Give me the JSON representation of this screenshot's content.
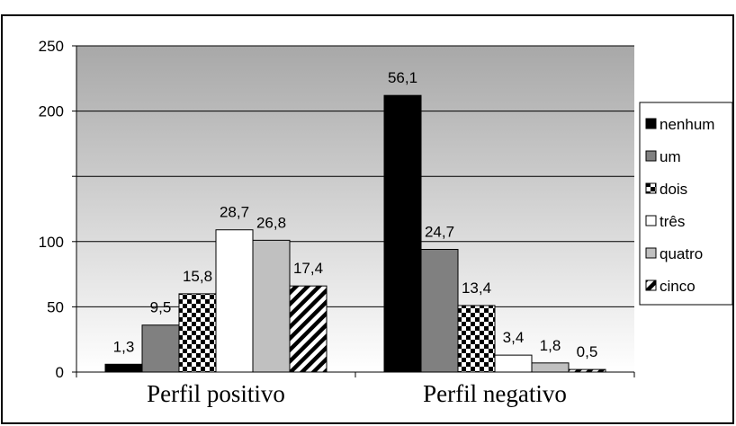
{
  "chart_data": {
    "type": "bar",
    "categories": [
      "Perfil positivo",
      "Perfil negativo"
    ],
    "series": [
      {
        "name": "nenhum",
        "values": [
          1.3,
          56.1
        ],
        "bar_values": [
          6,
          212
        ],
        "fill": "black",
        "color": "#000000"
      },
      {
        "name": "um",
        "values": [
          9.5,
          24.7
        ],
        "bar_values": [
          36,
          94
        ],
        "fill": "dark",
        "color": "#808080"
      },
      {
        "name": "dois",
        "values": [
          15.8,
          13.4
        ],
        "bar_values": [
          60,
          51
        ],
        "fill": "checker",
        "color": "#000000"
      },
      {
        "name": "três",
        "values": [
          28.7,
          3.4
        ],
        "bar_values": [
          109,
          13
        ],
        "fill": "white",
        "color": "#ffffff"
      },
      {
        "name": "quatro",
        "values": [
          26.8,
          1.8
        ],
        "bar_values": [
          101,
          7
        ],
        "fill": "light",
        "color": "#c0c0c0"
      },
      {
        "name": "cinco",
        "values": [
          17.4,
          0.5
        ],
        "bar_values": [
          66,
          2
        ],
        "fill": "diagonal",
        "color": "#000000"
      }
    ],
    "data_labels": [
      [
        "1,3",
        "9,5",
        "15,8",
        "28,7",
        "26,8",
        "17,4"
      ],
      [
        "56,1",
        "24,7",
        "13,4",
        "3,4",
        "1,8",
        "0,5"
      ]
    ],
    "y_ticks": [
      {
        "value": 0,
        "label": "0"
      },
      {
        "value": 50,
        "label": "50"
      },
      {
        "value": 100,
        "label": "100"
      },
      {
        "value": 150,
        "label": ""
      },
      {
        "value": 200,
        "label": "200"
      },
      {
        "value": 250,
        "label": "250"
      }
    ],
    "ylim": [
      0,
      250
    ],
    "grid": true,
    "legend": "right",
    "background_gradient": [
      "#a8a8a8",
      "#ffffff"
    ]
  }
}
